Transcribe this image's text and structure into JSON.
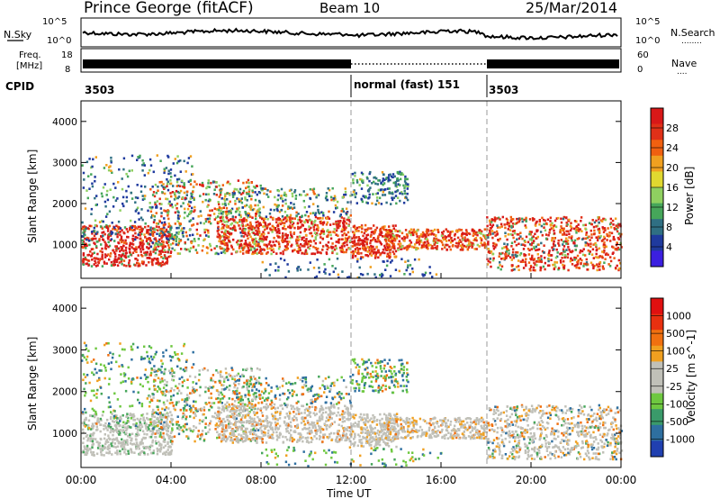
{
  "header": {
    "station": "Prince George (fitACF)",
    "beam": "Beam 10",
    "date": "25/Mar/2014"
  },
  "strip_labels": {
    "nsky": "N.Sky",
    "nsearch": "N.Search",
    "nsearch_dots": "........",
    "freq_line1": "Freq.",
    "freq_line2": "[MHz]",
    "nave": "Nave",
    "nave_dots": "....",
    "cpid": "CPID"
  },
  "cpid_segments": [
    {
      "label": "3503",
      "start_hour": 0,
      "end_hour": 12
    },
    {
      "label": "normal (fast) 151",
      "start_hour": 12,
      "end_hour": 18
    },
    {
      "label": "3503",
      "start_hour": 18,
      "end_hour": 24
    }
  ],
  "noise_axis": {
    "left_ticks": [
      "10^5",
      "10^0"
    ],
    "right_ticks": [
      "10^5",
      "10^0"
    ]
  },
  "freq_axis": {
    "left_ticks": [
      "18",
      "8"
    ],
    "right_ticks": [
      "60",
      "0"
    ]
  },
  "chart_data": [
    {
      "type": "heatmap",
      "title": "Power",
      "ylabel": "Slant Range [km]",
      "xlabel": "Time UT",
      "ylim": [
        180,
        4500
      ],
      "xlim_hours": [
        0,
        24
      ],
      "yticks": [
        1000,
        2000,
        3000,
        4000
      ],
      "colorbar": {
        "label": "Power [dB]",
        "ticks": [
          "28",
          "24",
          "20",
          "16",
          "12",
          "8",
          "4"
        ],
        "colors": [
          "#3b1fe0",
          "#1f3a9e",
          "#2f6f83",
          "#46a65a",
          "#8fd060",
          "#e0d830",
          "#f0a020",
          "#f06010",
          "#e03018",
          "#d81818"
        ]
      }
    },
    {
      "type": "heatmap",
      "title": "Velocity",
      "ylabel": "Slant Range [km]",
      "xlabel": "Time UT",
      "ylim": [
        180,
        4500
      ],
      "xlim_hours": [
        0,
        24
      ],
      "yticks": [
        1000,
        2000,
        3000,
        4000
      ],
      "colorbar": {
        "label": "Velocity [m s^-1]",
        "ticks": [
          "1000",
          "500",
          "100",
          "25",
          "-25",
          "-100",
          "-500",
          "-1000"
        ],
        "colors": [
          "#2040b0",
          "#2e6fa0",
          "#3a9a6a",
          "#6ec840",
          "#c0c0b8",
          "#c0c0b8",
          "#f0a020",
          "#f07010",
          "#e83010",
          "#e01010"
        ]
      }
    }
  ],
  "x_axis": {
    "label": "Time UT",
    "ticks": [
      "00:00",
      "04:00",
      "08:00",
      "12:00",
      "16:00",
      "20:00",
      "00:00"
    ]
  }
}
